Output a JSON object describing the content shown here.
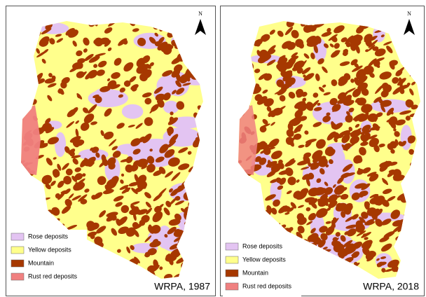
{
  "maps": [
    {
      "title": "WRPA, 1987",
      "north": "N",
      "mountain_density": 0.55,
      "legend": [
        {
          "label": "Rose deposits",
          "color": "#e3c4f2"
        },
        {
          "label": "Yellow deposits",
          "color": "#ffff8c"
        },
        {
          "label": "Mountain",
          "color": "#a63800"
        },
        {
          "label": "Rust red deposits",
          "color": "#f08080"
        }
      ]
    },
    {
      "title": "WRPA, 2018",
      "north": "N",
      "mountain_density": 0.8,
      "legend": [
        {
          "label": "Rose deposits",
          "color": "#e3c4f2"
        },
        {
          "label": "Yellow deposits",
          "color": "#ffff8c"
        },
        {
          "label": "Mountain",
          "color": "#a63800"
        },
        {
          "label": "Rust red deposits",
          "color": "#f08080"
        }
      ]
    }
  ]
}
